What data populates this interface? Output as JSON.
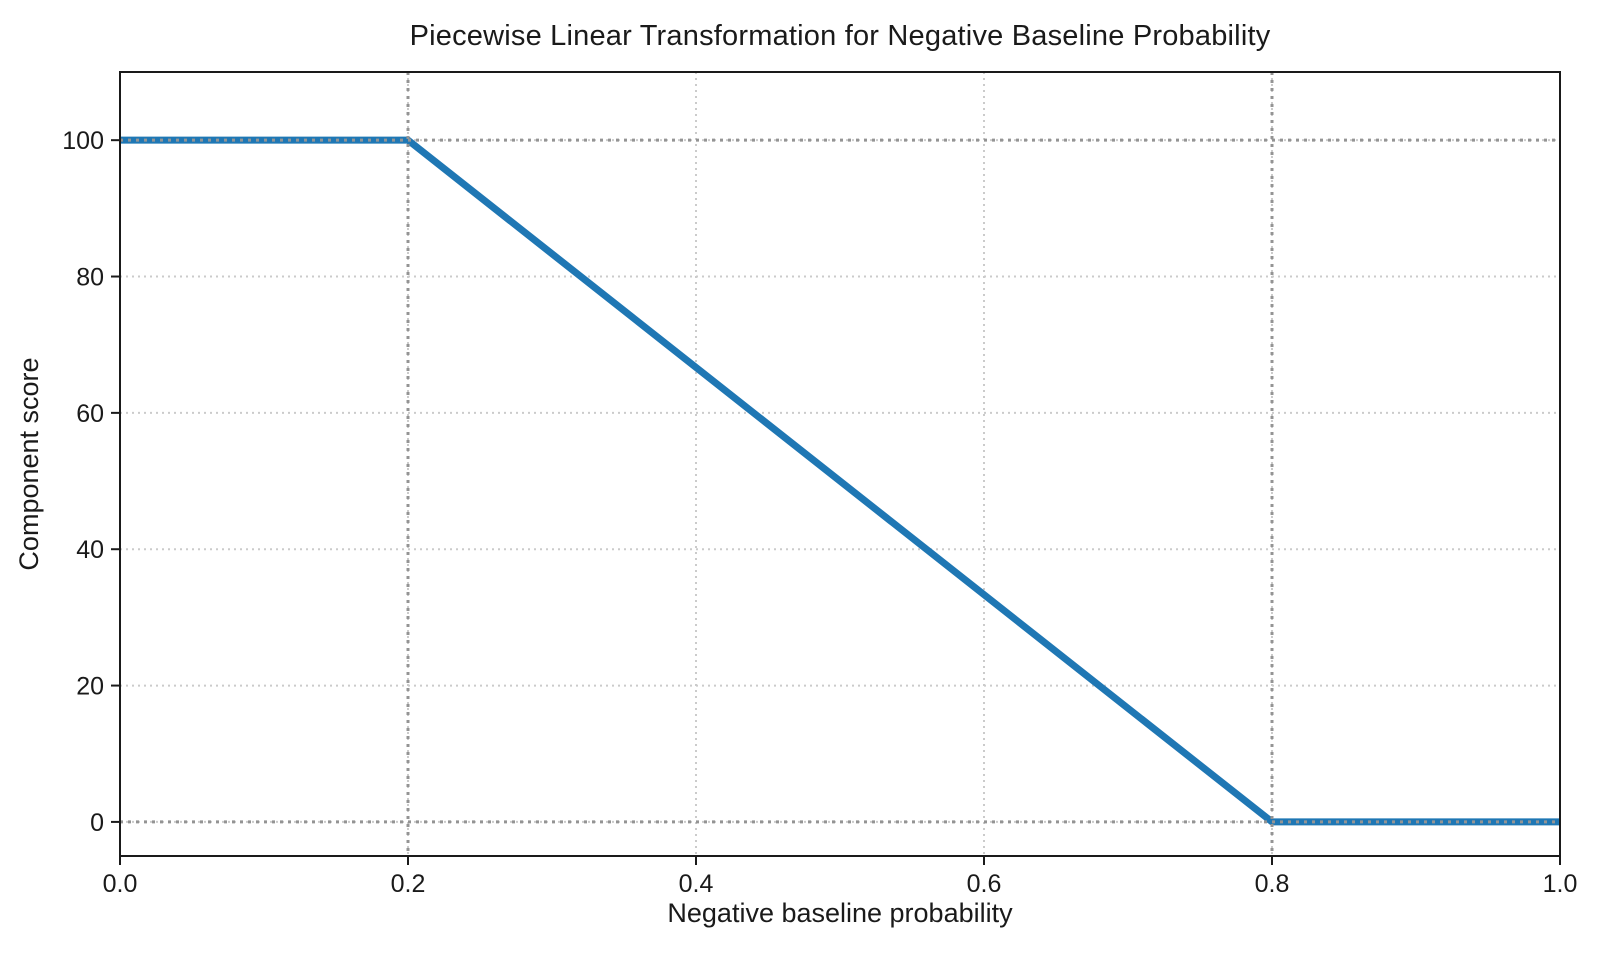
{
  "chart_data": {
    "type": "line",
    "title": "Piecewise Linear Transformation for Negative Baseline Probability",
    "xlabel": "Negative baseline probability",
    "ylabel": "Component score",
    "xlim": [
      0.0,
      1.0
    ],
    "ylim": [
      -5,
      110
    ],
    "xticks": [
      0.0,
      0.2,
      0.4,
      0.6,
      0.8,
      1.0
    ],
    "xtick_labels": [
      "0.0",
      "0.2",
      "0.4",
      "0.6",
      "0.8",
      "1.0"
    ],
    "yticks": [
      0,
      20,
      40,
      60,
      80,
      100
    ],
    "ytick_labels": [
      "0",
      "20",
      "40",
      "60",
      "80",
      "100"
    ],
    "grid": true,
    "legend": false,
    "series": [
      {
        "name": "piecewise-linear-transform",
        "color": "#1f77b4",
        "x": [
          0.0,
          0.2,
          0.8,
          1.0
        ],
        "y": [
          100,
          100,
          0,
          0
        ]
      }
    ],
    "reference_lines": {
      "vertical_x": [
        0.2,
        0.8
      ],
      "horizontal_y": [
        100,
        0
      ],
      "style": "dotted"
    },
    "colors": {
      "line": "#1f77b4",
      "grid": "#cbcbcb",
      "reference": "#949494",
      "spine": "#1a1a1a",
      "text": "#1a1a1a"
    }
  }
}
